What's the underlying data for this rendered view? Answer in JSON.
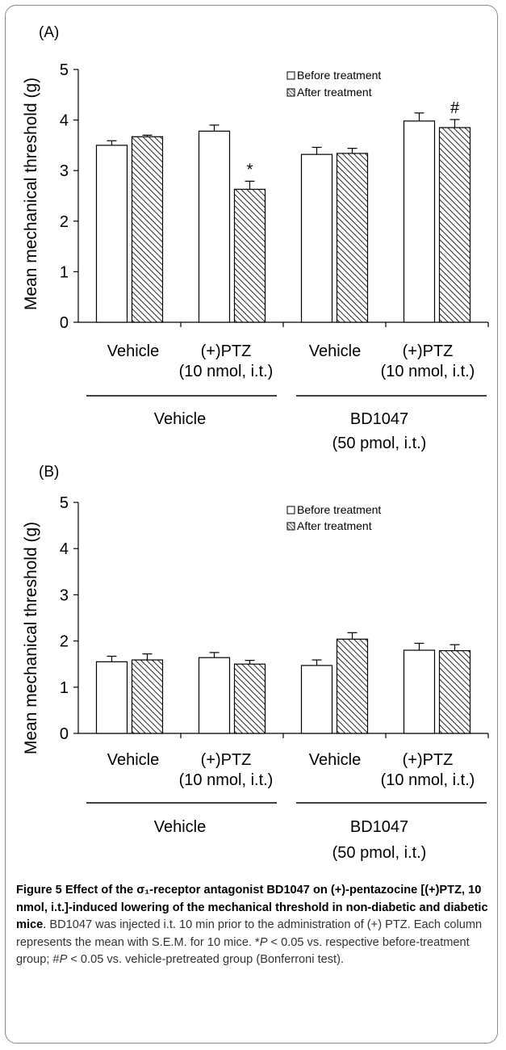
{
  "panels": [
    {
      "label": "(A)",
      "ylabel": "Mean mechanical threshold (g)",
      "legend": [
        "Before treatment",
        "After treatment"
      ],
      "chart_data": {
        "type": "bar",
        "categories": [
          "Vehicle",
          "(+)PTZ",
          "Vehicle",
          "(+)PTZ"
        ],
        "category_sublabels": [
          "",
          "(10 nmol, i.t.)",
          "",
          "(10 nmol, i.t.)"
        ],
        "groups": [
          {
            "line1": "Vehicle",
            "line2": ""
          },
          {
            "line1": "BD1047",
            "line2": "(50 pmol, i.t.)"
          }
        ],
        "series": [
          {
            "name": "Before treatment",
            "values": [
              3.5,
              3.78,
              3.32,
              3.98
            ],
            "sem": [
              0.09,
              0.12,
              0.14,
              0.16
            ]
          },
          {
            "name": "After treatment",
            "values": [
              3.67,
              2.63,
              3.34,
              3.85
            ],
            "sem": [
              0.03,
              0.16,
              0.1,
              0.16
            ]
          }
        ],
        "annotations": [
          {
            "series": 1,
            "category": 1,
            "text": "*"
          },
          {
            "series": 1,
            "category": 3,
            "text": "#"
          }
        ],
        "ylim": [
          0,
          5
        ],
        "yticks": [
          "0",
          "1",
          "2",
          "3",
          "4",
          "5"
        ]
      }
    },
    {
      "label": "(B)",
      "ylabel": "Mean mechanical threshold (g)",
      "legend": [
        "Before treatment",
        "After treatment"
      ],
      "chart_data": {
        "type": "bar",
        "categories": [
          "Vehicle",
          "(+)PTZ",
          "Vehicle",
          "(+)PTZ"
        ],
        "category_sublabels": [
          "",
          "(10 nmol, i.t.)",
          "",
          "(10 nmol, i.t.)"
        ],
        "groups": [
          {
            "line1": "Vehicle",
            "line2": ""
          },
          {
            "line1": "BD1047",
            "line2": "(50 pmol, i.t.)"
          }
        ],
        "series": [
          {
            "name": "Before treatment",
            "values": [
              1.55,
              1.64,
              1.47,
              1.8
            ],
            "sem": [
              0.12,
              0.11,
              0.12,
              0.15
            ]
          },
          {
            "name": "After treatment",
            "values": [
              1.59,
              1.5,
              2.04,
              1.79
            ],
            "sem": [
              0.13,
              0.08,
              0.14,
              0.13
            ]
          }
        ],
        "annotations": [],
        "ylim": [
          0,
          5
        ],
        "yticks": [
          "0",
          "1",
          "2",
          "3",
          "4",
          "5"
        ]
      }
    }
  ],
  "caption": {
    "title": "Figure 5 Effect of the σ₁-receptor antagonist BD1047 on (+)-pentazocine [(+)PTZ, 10 nmol, i.t.]-induced lowering of the mechanical threshold in non-diabetic and diabetic mice",
    "body_1": "BD1047 was injected i.t. 10 min prior to the administration of (+) PTZ. Each column represents the mean with S.E.M. for 10 mice. *",
    "p1": "P",
    "body_2": " < 0.05 vs. respective before-treatment group; #",
    "p2": "P",
    "body_3": " < 0.05 vs. vehicle-pretreated group (Bonferroni test)."
  }
}
